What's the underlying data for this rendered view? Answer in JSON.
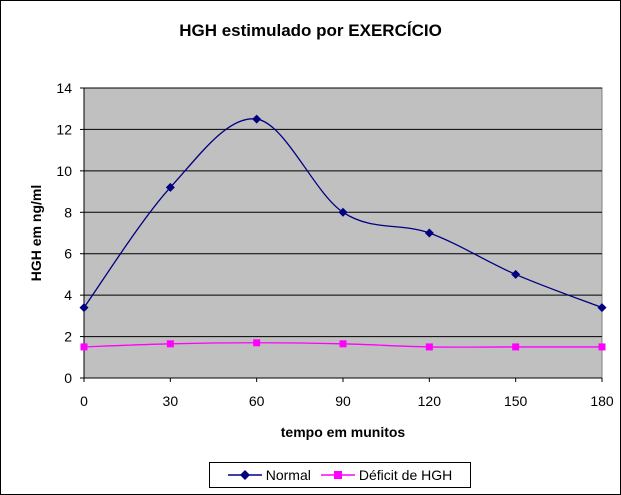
{
  "chart_data": {
    "type": "line",
    "title": "HGH estimulado por EXERCÍCIO",
    "xlabel": "tempo em munitos",
    "ylabel": "HGH em ng/ml",
    "x": [
      0,
      30,
      60,
      90,
      120,
      150,
      180
    ],
    "xlim": [
      0,
      180
    ],
    "ylim": [
      0,
      14
    ],
    "yticks": [
      0,
      2,
      4,
      6,
      8,
      10,
      12,
      14
    ],
    "grid": true,
    "plot_background": "#c0c0c0",
    "legend_position": "bottom",
    "series": [
      {
        "name": "Normal",
        "color": "#000080",
        "marker": "diamond",
        "values": [
          3.4,
          9.2,
          12.5,
          8.0,
          7.0,
          5.0,
          3.4
        ]
      },
      {
        "name": "Déficit de HGH",
        "color": "#ff00ff",
        "marker": "square",
        "values": [
          1.5,
          1.65,
          1.7,
          1.65,
          1.5,
          1.5,
          1.5
        ]
      }
    ]
  }
}
